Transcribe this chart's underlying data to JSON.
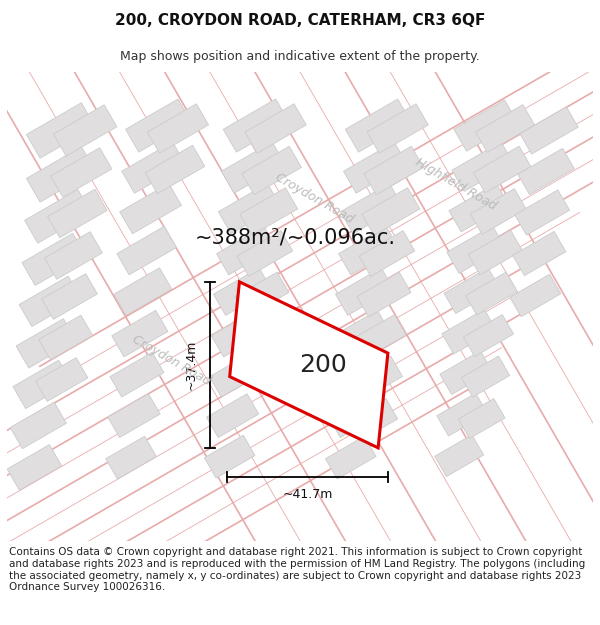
{
  "title": "200, CROYDON ROAD, CATERHAM, CR3 6QF",
  "subtitle": "Map shows position and indicative extent of the property.",
  "footer": "Contains OS data © Crown copyright and database right 2021. This information is subject to Crown copyright and database rights 2023 and is reproduced with the permission of HM Land Registry. The polygons (including the associated geometry, namely x, y co-ordinates) are subject to Crown copyright and database rights 2023 Ordnance Survey 100026316.",
  "area_label": "~388m²/~0.096ac.",
  "plot_number": "200",
  "dim_width": "~41.7m",
  "dim_height": "~37.4m",
  "map_bg": "#f8f7f7",
  "road_line_color": "#e8aaaa",
  "building_fill": "#e0dede",
  "building_edge": "#cccccc",
  "plot_edge_color": "#dd0000",
  "plot_fill": "#ffffff",
  "dim_color": "#111111",
  "label_color": "#222222",
  "road_label_color": "#bbbbbb",
  "title_fontsize": 11,
  "subtitle_fontsize": 9,
  "footer_fontsize": 7.5,
  "area_fontsize": 15,
  "plot_num_fontsize": 18,
  "croydon_road_label": "Croydon Road",
  "highfield_road_label": "Highfield Road"
}
